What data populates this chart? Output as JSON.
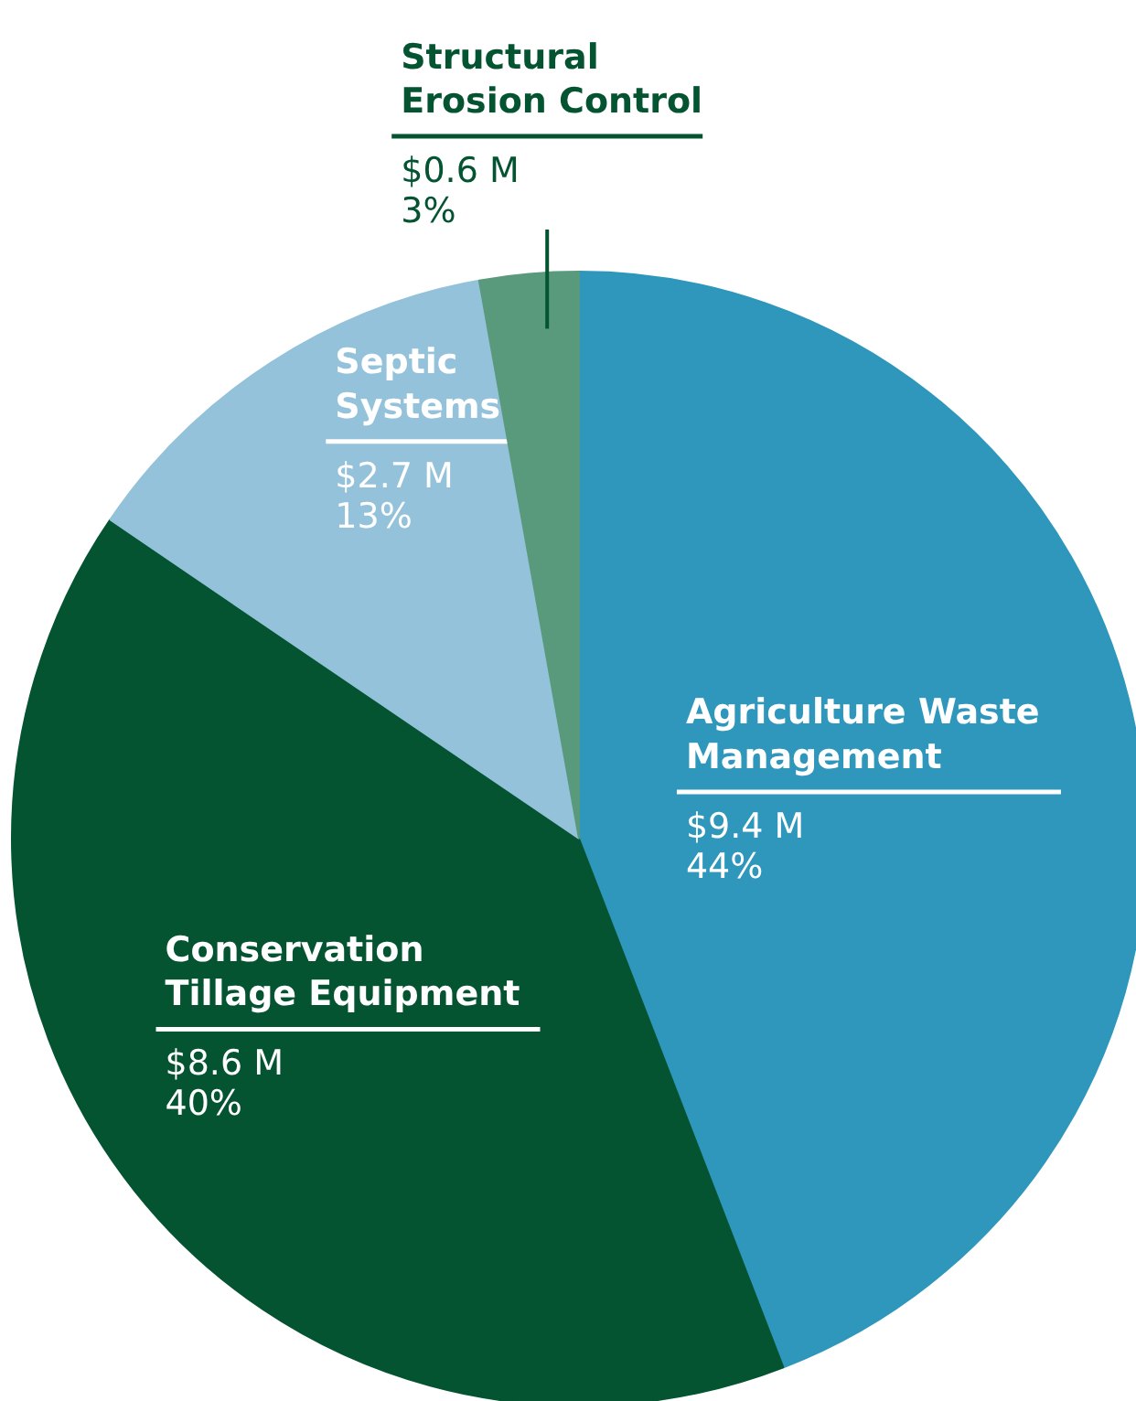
{
  "chart_data": {
    "type": "pie",
    "categories": [
      "Agriculture Waste\nManagement",
      "Conservation\nTillage Equipment",
      "Septic\nSystems",
      "Structural\nErosion Control"
    ],
    "values": [
      9.4,
      8.6,
      2.7,
      0.6
    ],
    "colors": [
      "#2e97bb",
      "#045432",
      "#93c2da",
      "#5a9a7c"
    ],
    "value_labels": [
      "$9.4 M\n44%",
      "$8.6 M\n40%",
      "$2.7 M\n13%",
      "$0.6 M\n3%"
    ]
  }
}
